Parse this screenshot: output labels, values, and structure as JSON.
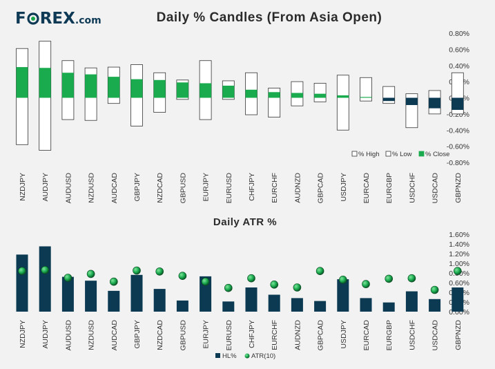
{
  "logo": {
    "text_pre": "F",
    "text_post": "REX",
    "suffix": ".com",
    "colors": {
      "blue": "#0e3a55",
      "green": "#19a64a"
    }
  },
  "chart_data": [
    {
      "type": "candles",
      "title": "Daily % Candles (From Asia Open)",
      "categories": [
        "NZDJPY",
        "AUDJPY",
        "AUDUSD",
        "NZDUSD",
        "AUDCAD",
        "GBPJPY",
        "NZDCAD",
        "GBPUSD",
        "EURJPY",
        "EURUSD",
        "CHFJPY",
        "EURCHF",
        "AUDNZD",
        "GBPCAD",
        "USDJPY",
        "EURCAD",
        "EURGBP",
        "USDCHF",
        "USDCAD",
        "GBPNZD"
      ],
      "high": [
        0.61,
        0.7,
        0.46,
        0.37,
        0.38,
        0.41,
        0.31,
        0.22,
        0.46,
        0.21,
        0.31,
        0.12,
        0.2,
        0.18,
        0.28,
        0.25,
        0.14,
        0.05,
        0.09,
        0.31
      ],
      "low": [
        -0.58,
        -0.65,
        -0.27,
        -0.28,
        -0.07,
        -0.35,
        -0.18,
        -0.02,
        -0.27,
        -0.02,
        -0.21,
        -0.24,
        -0.1,
        -0.05,
        -0.4,
        -0.04,
        -0.07,
        -0.37,
        -0.2,
        -0.2
      ],
      "close": [
        0.38,
        0.37,
        0.31,
        0.29,
        0.26,
        0.23,
        0.22,
        0.19,
        0.18,
        0.15,
        0.1,
        0.07,
        0.06,
        0.05,
        0.03,
        0.01,
        -0.04,
        -0.09,
        -0.13,
        -0.15
      ],
      "ylim": [
        -0.8,
        0.8
      ],
      "yticks": [
        "0.80%",
        "0.60%",
        "0.40%",
        "0.20%",
        "0.00%",
        "-0.20%",
        "-0.40%",
        "-0.60%",
        "-0.80%"
      ],
      "legend": [
        "% High",
        "% Low",
        "% Close"
      ],
      "colors": {
        "up": "#1aab4f",
        "down": "#0b3a52",
        "range": "#ffffff",
        "outline": "#333333"
      }
    },
    {
      "type": "bar+scatter",
      "title": "Daily ATR %",
      "categories": [
        "NZDJPY",
        "AUDJPY",
        "AUDUSD",
        "NZDUSD",
        "AUDCAD",
        "GBPJPY",
        "NZDCAD",
        "GBPUSD",
        "EURJPY",
        "EURUSD",
        "CHFJPY",
        "EURCHF",
        "AUDNZD",
        "GBPCAD",
        "USDJPY",
        "EURCAD",
        "EURGBP",
        "USDCHF",
        "USDCAD",
        "GBPNZD"
      ],
      "series": [
        {
          "name": "HL%",
          "type": "bar",
          "values": [
            1.18,
            1.35,
            0.72,
            0.64,
            0.43,
            0.76,
            0.47,
            0.23,
            0.73,
            0.21,
            0.5,
            0.35,
            0.28,
            0.22,
            0.67,
            0.28,
            0.19,
            0.42,
            0.26,
            0.5
          ]
        },
        {
          "name": "ATR(10)",
          "type": "scatter",
          "values": [
            0.84,
            0.86,
            0.7,
            0.78,
            0.62,
            0.85,
            0.83,
            0.74,
            0.62,
            0.49,
            0.69,
            0.56,
            0.5,
            0.84,
            0.66,
            0.57,
            0.68,
            0.69,
            0.45,
            0.84
          ]
        }
      ],
      "ylim": [
        0,
        1.6
      ],
      "yticks": [
        "1.60%",
        "1.40%",
        "1.20%",
        "1.00%",
        "0.80%",
        "0.60%",
        "0.40%",
        "0.20%",
        "0.00%"
      ],
      "legend": [
        "HL%",
        "ATR(10)"
      ],
      "colors": {
        "bar": "#0b3a52",
        "dot": "#1aab4f"
      }
    }
  ]
}
